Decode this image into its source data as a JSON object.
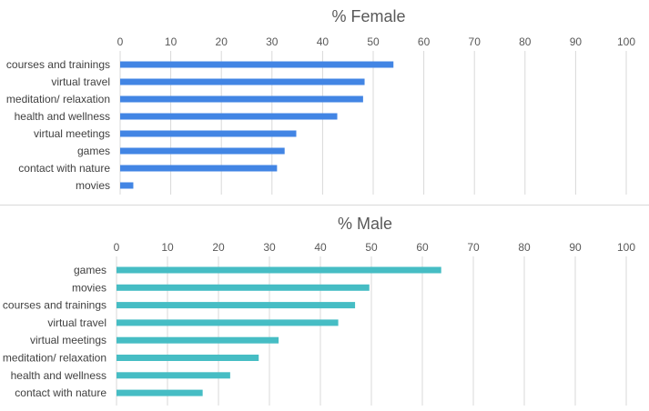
{
  "chart_data": [
    {
      "type": "bar",
      "orientation": "horizontal",
      "title": "% Female",
      "xlabel": "",
      "ylabel": "",
      "xlim": [
        0,
        100
      ],
      "xticks": [
        0,
        10,
        20,
        30,
        40,
        50,
        60,
        70,
        80,
        90,
        100
      ],
      "grid": true,
      "color": "#4285e4",
      "categories": [
        "courses and trainings",
        "virtual travel",
        "meditation/ relaxation",
        "health and wellness",
        "virtual meetings",
        "games",
        "contact with nature",
        "movies"
      ],
      "values": [
        54,
        48.3,
        48,
        42.9,
        34.8,
        32.5,
        31,
        2.6
      ]
    },
    {
      "type": "bar",
      "orientation": "horizontal",
      "title": "% Male",
      "xlabel": "",
      "ylabel": "",
      "xlim": [
        0,
        100
      ],
      "xticks": [
        0,
        10,
        20,
        30,
        40,
        50,
        60,
        70,
        80,
        90,
        100
      ],
      "grid": true,
      "color": "#46bdc4",
      "categories": [
        "games",
        "movies",
        "courses and trainings",
        "virtual travel",
        "virtual meetings",
        "meditation/ relaxation",
        "health and wellness",
        "contact with nature"
      ],
      "values": [
        63.7,
        49.6,
        46.8,
        43.5,
        31.8,
        27.9,
        22.3,
        16.9
      ]
    }
  ]
}
